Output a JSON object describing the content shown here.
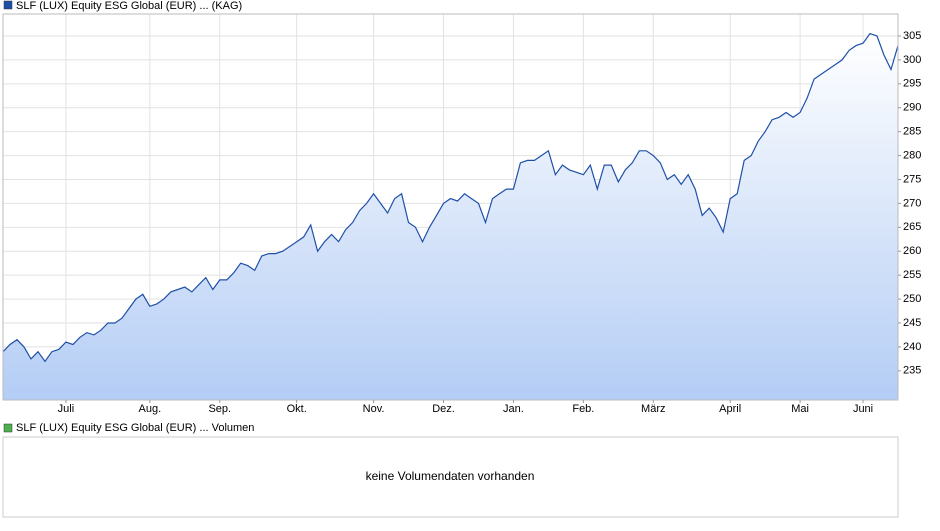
{
  "chart_data": {
    "type": "line",
    "series": [
      {
        "name": "SLF (LUX) Equity ESG Global (EUR) ... (KAG)",
        "color": "#1f50a8",
        "values": [
          239,
          240.5,
          241.5,
          240,
          237.5,
          239,
          237,
          239,
          239.5,
          241,
          240.5,
          242,
          243,
          242.5,
          243.5,
          245,
          245,
          246,
          248,
          250,
          251,
          248.5,
          249,
          250,
          251.5,
          252,
          252.5,
          251.5,
          253,
          254.5,
          252,
          254,
          254,
          255.5,
          257.5,
          257,
          256,
          259,
          259.5,
          259.5,
          260,
          261,
          262,
          263,
          265.5,
          260,
          262,
          263.5,
          262,
          264.5,
          266,
          268.5,
          270,
          272,
          270,
          268,
          271,
          272,
          266,
          265,
          262,
          265,
          267.5,
          270,
          271,
          270.5,
          272,
          271,
          270,
          266,
          271,
          272,
          273,
          273,
          278.5,
          279,
          279,
          280,
          281,
          276,
          278,
          277,
          276.5,
          276,
          278,
          273,
          278,
          278,
          274.5,
          277,
          278.5,
          281,
          281,
          280,
          278.5,
          275,
          276,
          274,
          276,
          273,
          267.5,
          269,
          267,
          264,
          271,
          272,
          279,
          280,
          283,
          285,
          287.5,
          288,
          289,
          288,
          289,
          292,
          296,
          297,
          298,
          299,
          300,
          302,
          303,
          303.5,
          305.5,
          305,
          301,
          298,
          303
        ]
      }
    ],
    "xlim": [
      0,
      128
    ],
    "xticks": [
      {
        "value": 9,
        "label": "Juli"
      },
      {
        "value": 21,
        "label": "Aug."
      },
      {
        "value": 31,
        "label": "Sep."
      },
      {
        "value": 42,
        "label": "Okt."
      },
      {
        "value": 53,
        "label": "Nov."
      },
      {
        "value": 63,
        "label": "Dez."
      },
      {
        "value": 73,
        "label": "Jan."
      },
      {
        "value": 83,
        "label": "Feb."
      },
      {
        "value": 93,
        "label": "März"
      },
      {
        "value": 104,
        "label": "April"
      },
      {
        "value": 114,
        "label": "Mai"
      },
      {
        "value": 123,
        "label": "Juni"
      }
    ],
    "ylim": [
      228.9,
      309.6
    ],
    "yticks": [
      235,
      240,
      245,
      250,
      255,
      260,
      265,
      270,
      275,
      280,
      285,
      290,
      295,
      300,
      305
    ],
    "grid": true
  },
  "volume_panel": {
    "legend": "SLF (LUX) Equity ESG Global (EUR) ... Volumen",
    "color": "#4caf50",
    "note": "keine Volumendaten vorhanden"
  }
}
